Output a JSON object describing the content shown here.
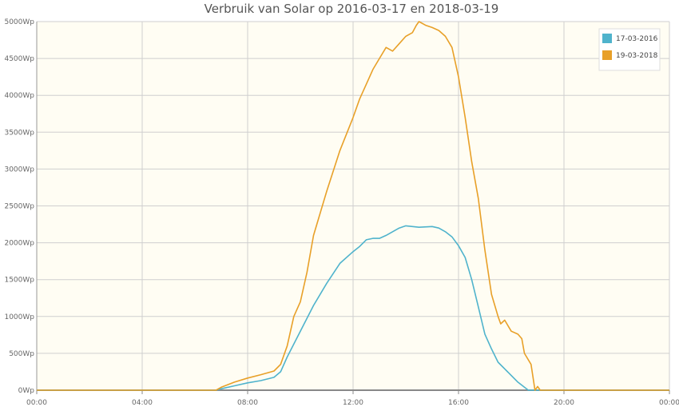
{
  "chart_data": {
    "type": "line",
    "title": "Verbruik van Solar op 2016-03-17 en 2018-03-19",
    "xlabel": "",
    "ylabel": "",
    "x_unit": "hours",
    "xlim": [
      0,
      24
    ],
    "ylim": [
      0,
      5000
    ],
    "x_ticks": [
      0,
      4,
      8,
      12,
      16,
      20,
      24
    ],
    "x_tick_labels": [
      "00:00",
      "04:00",
      "08:00",
      "12:00",
      "16:00",
      "20:00",
      "00:00"
    ],
    "y_ticks": [
      0,
      500,
      1000,
      1500,
      2000,
      2500,
      3000,
      3500,
      4000,
      4500,
      5000
    ],
    "y_tick_labels": [
      "0Wp",
      "500Wp",
      "1000Wp",
      "1500Wp",
      "2000Wp",
      "2500Wp",
      "3000Wp",
      "3500Wp",
      "4000Wp",
      "4500Wp",
      "5000Wp"
    ],
    "grid": true,
    "legend_position": "top-right",
    "background_color": "#fffdf3",
    "series": [
      {
        "name": "17-03-2016",
        "color": "#4fb3cc",
        "points": [
          [
            0,
            0
          ],
          [
            6.8,
            0
          ],
          [
            7.0,
            20
          ],
          [
            7.5,
            60
          ],
          [
            8.0,
            100
          ],
          [
            8.5,
            130
          ],
          [
            9.0,
            175
          ],
          [
            9.25,
            250
          ],
          [
            9.5,
            450
          ],
          [
            10.0,
            800
          ],
          [
            10.5,
            1150
          ],
          [
            11.0,
            1450
          ],
          [
            11.5,
            1720
          ],
          [
            12.0,
            1880
          ],
          [
            12.25,
            1950
          ],
          [
            12.5,
            2040
          ],
          [
            12.75,
            2060
          ],
          [
            13.0,
            2060
          ],
          [
            13.25,
            2100
          ],
          [
            13.5,
            2150
          ],
          [
            13.75,
            2200
          ],
          [
            14.0,
            2230
          ],
          [
            14.25,
            2220
          ],
          [
            14.5,
            2210
          ],
          [
            15.0,
            2220
          ],
          [
            15.25,
            2200
          ],
          [
            15.5,
            2150
          ],
          [
            15.75,
            2080
          ],
          [
            16.0,
            1960
          ],
          [
            16.25,
            1800
          ],
          [
            16.5,
            1500
          ],
          [
            16.75,
            1130
          ],
          [
            17.0,
            760
          ],
          [
            17.25,
            560
          ],
          [
            17.5,
            380
          ],
          [
            17.75,
            290
          ],
          [
            18.0,
            200
          ],
          [
            18.25,
            110
          ],
          [
            18.5,
            40
          ],
          [
            18.65,
            0
          ],
          [
            24,
            0
          ]
        ]
      },
      {
        "name": "19-03-2018",
        "color": "#e8a028",
        "points": [
          [
            0,
            0
          ],
          [
            6.8,
            0
          ],
          [
            7.0,
            40
          ],
          [
            7.5,
            110
          ],
          [
            8.0,
            165
          ],
          [
            8.5,
            210
          ],
          [
            9.0,
            260
          ],
          [
            9.25,
            350
          ],
          [
            9.5,
            600
          ],
          [
            9.75,
            1000
          ],
          [
            10.0,
            1200
          ],
          [
            10.25,
            1600
          ],
          [
            10.5,
            2100
          ],
          [
            11.0,
            2700
          ],
          [
            11.5,
            3250
          ],
          [
            12.0,
            3700
          ],
          [
            12.25,
            3950
          ],
          [
            12.5,
            4150
          ],
          [
            12.75,
            4350
          ],
          [
            13.0,
            4500
          ],
          [
            13.25,
            4650
          ],
          [
            13.5,
            4600
          ],
          [
            13.75,
            4700
          ],
          [
            14.0,
            4800
          ],
          [
            14.25,
            4850
          ],
          [
            14.4,
            4950
          ],
          [
            14.5,
            5000
          ],
          [
            14.75,
            4950
          ],
          [
            15.0,
            4920
          ],
          [
            15.25,
            4880
          ],
          [
            15.5,
            4800
          ],
          [
            15.75,
            4650
          ],
          [
            16.0,
            4250
          ],
          [
            16.25,
            3700
          ],
          [
            16.5,
            3100
          ],
          [
            16.75,
            2600
          ],
          [
            17.0,
            1900
          ],
          [
            17.25,
            1300
          ],
          [
            17.5,
            1000
          ],
          [
            17.6,
            900
          ],
          [
            17.75,
            950
          ],
          [
            18.0,
            800
          ],
          [
            18.25,
            760
          ],
          [
            18.4,
            700
          ],
          [
            18.5,
            500
          ],
          [
            18.75,
            350
          ],
          [
            18.9,
            0
          ],
          [
            19.0,
            50
          ],
          [
            19.1,
            0
          ],
          [
            24,
            0
          ]
        ]
      }
    ]
  }
}
